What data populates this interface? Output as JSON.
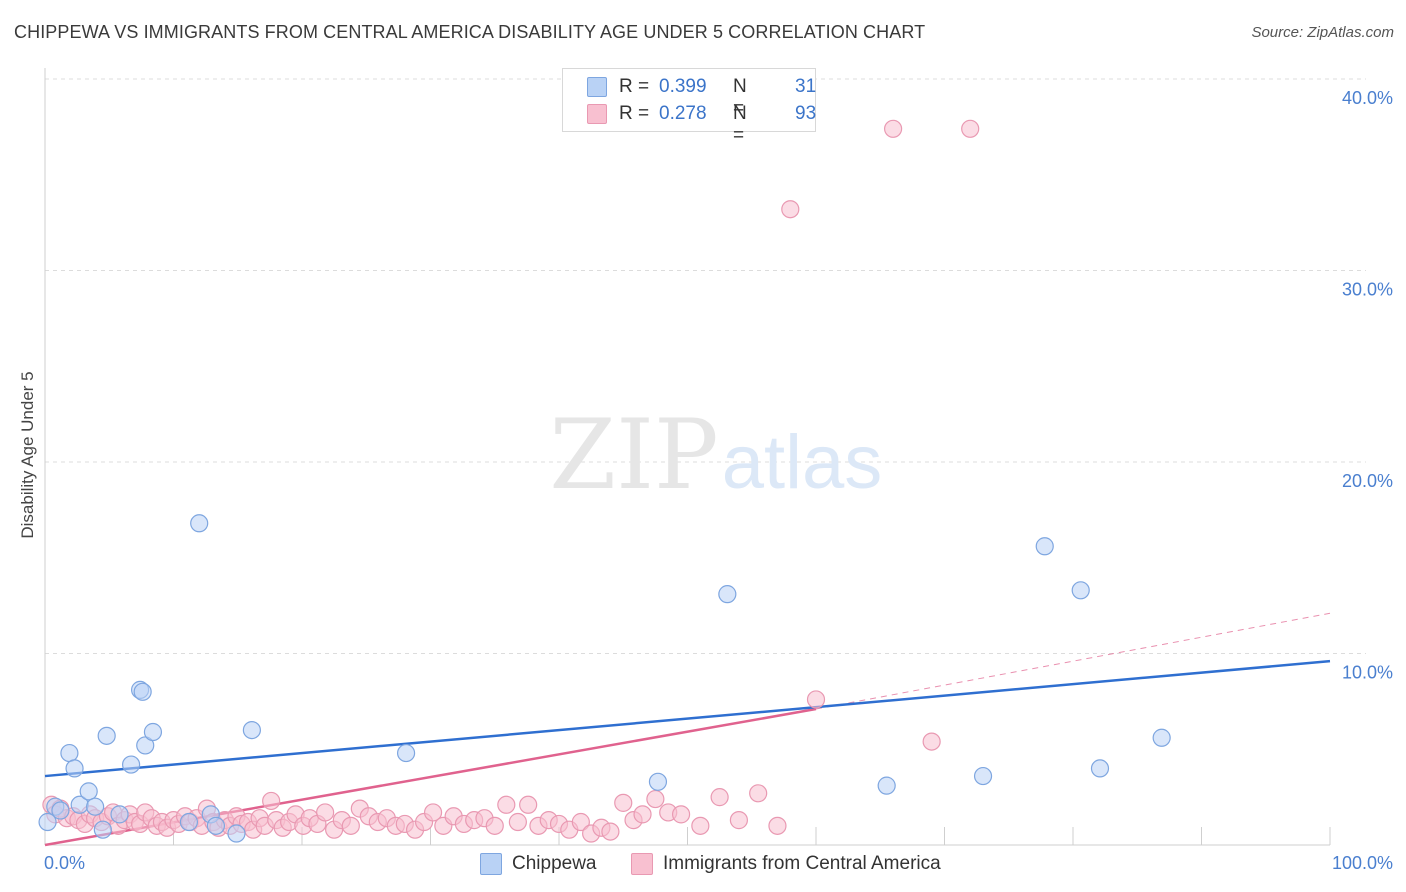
{
  "header": {
    "title": "CHIPPEWA VS IMMIGRANTS FROM CENTRAL AMERICA DISABILITY AGE UNDER 5 CORRELATION CHART",
    "source": "Source: ZipAtlas.com"
  },
  "watermark": {
    "zip": "ZIP",
    "atlas": "atlas"
  },
  "stats": {
    "r_label": "R =",
    "n_label": "N =",
    "rows": [
      {
        "r": "0.399",
        "n": "31"
      },
      {
        "r": "0.278",
        "n": "93"
      }
    ]
  },
  "colors": {
    "chippewa_fill": "#b9d2f5",
    "chippewa_stroke": "#7ea6e0",
    "chippewa_line": "#2f6fd0",
    "central_fill": "#f8c0d0",
    "central_stroke": "#e999b2",
    "central_line": "#e0628e",
    "tick_text": "#4a7fcf",
    "grid": "#dcdcdc"
  },
  "chart_data": {
    "type": "scatter",
    "title": "CHIPPEWA VS IMMIGRANTS FROM CENTRAL AMERICA DISABILITY AGE UNDER 5 CORRELATION CHART",
    "xlabel": "",
    "ylabel": "Disability Age Under 5",
    "xlim": [
      0,
      100
    ],
    "ylim": [
      0,
      40
    ],
    "x_tick_labels": [
      "0.0%",
      "100.0%"
    ],
    "y_ticks": [
      10,
      20,
      30,
      40
    ],
    "y_tick_labels": [
      "10.0%",
      "20.0%",
      "30.0%",
      "40.0%"
    ],
    "grid": true,
    "legend_position": "bottom-center",
    "series": [
      {
        "name": "Chippewa",
        "r": 0.399,
        "n": 31,
        "points": [
          [
            0.2,
            1.2
          ],
          [
            0.8,
            2.0
          ],
          [
            1.2,
            1.8
          ],
          [
            1.9,
            4.8
          ],
          [
            2.3,
            4.0
          ],
          [
            2.7,
            2.1
          ],
          [
            3.4,
            2.8
          ],
          [
            3.9,
            2.0
          ],
          [
            4.5,
            0.8
          ],
          [
            4.8,
            5.7
          ],
          [
            5.8,
            1.6
          ],
          [
            6.7,
            4.2
          ],
          [
            7.4,
            8.1
          ],
          [
            7.6,
            8.0
          ],
          [
            7.8,
            5.2
          ],
          [
            8.4,
            5.9
          ],
          [
            11.2,
            1.2
          ],
          [
            12.0,
            16.8
          ],
          [
            12.9,
            1.6
          ],
          [
            13.3,
            1.0
          ],
          [
            14.9,
            0.6
          ],
          [
            16.1,
            6.0
          ],
          [
            28.1,
            4.8
          ],
          [
            47.7,
            3.3
          ],
          [
            53.1,
            13.1
          ],
          [
            65.5,
            3.1
          ],
          [
            73.0,
            3.6
          ],
          [
            77.8,
            15.6
          ],
          [
            80.6,
            13.3
          ],
          [
            82.1,
            4.0
          ],
          [
            86.9,
            5.6
          ]
        ],
        "trend": {
          "x": [
            0,
            100
          ],
          "y": [
            3.6,
            9.6
          ]
        }
      },
      {
        "name": "Immigrants from Central America",
        "r": 0.278,
        "n": 93,
        "points": [
          [
            0.5,
            2.1
          ],
          [
            0.8,
            1.6
          ],
          [
            1.2,
            1.9
          ],
          [
            1.7,
            1.4
          ],
          [
            2.2,
            1.5
          ],
          [
            2.6,
            1.3
          ],
          [
            3.1,
            1.1
          ],
          [
            3.5,
            1.6
          ],
          [
            3.9,
            1.4
          ],
          [
            4.4,
            1.2
          ],
          [
            4.9,
            1.5
          ],
          [
            5.3,
            1.7
          ],
          [
            5.7,
            1.0
          ],
          [
            6.2,
            1.3
          ],
          [
            6.6,
            1.6
          ],
          [
            7.0,
            1.2
          ],
          [
            7.4,
            1.1
          ],
          [
            7.8,
            1.7
          ],
          [
            8.3,
            1.4
          ],
          [
            8.7,
            1.0
          ],
          [
            9.1,
            1.2
          ],
          [
            9.5,
            0.9
          ],
          [
            10.0,
            1.3
          ],
          [
            10.4,
            1.1
          ],
          [
            10.9,
            1.5
          ],
          [
            11.3,
            1.2
          ],
          [
            11.8,
            1.4
          ],
          [
            12.2,
            1.0
          ],
          [
            12.6,
            1.9
          ],
          [
            13.1,
            1.2
          ],
          [
            13.5,
            0.9
          ],
          [
            14.0,
            1.3
          ],
          [
            14.4,
            1.0
          ],
          [
            14.9,
            1.5
          ],
          [
            15.3,
            1.1
          ],
          [
            15.8,
            1.2
          ],
          [
            16.2,
            0.8
          ],
          [
            16.7,
            1.4
          ],
          [
            17.1,
            1.0
          ],
          [
            17.6,
            2.3
          ],
          [
            18.0,
            1.3
          ],
          [
            18.5,
            0.9
          ],
          [
            19.0,
            1.2
          ],
          [
            19.5,
            1.6
          ],
          [
            20.1,
            1.0
          ],
          [
            20.6,
            1.4
          ],
          [
            21.2,
            1.1
          ],
          [
            21.8,
            1.7
          ],
          [
            22.5,
            0.8
          ],
          [
            23.1,
            1.3
          ],
          [
            23.8,
            1.0
          ],
          [
            24.5,
            1.9
          ],
          [
            25.2,
            1.5
          ],
          [
            25.9,
            1.2
          ],
          [
            26.6,
            1.4
          ],
          [
            27.3,
            1.0
          ],
          [
            28.0,
            1.1
          ],
          [
            28.8,
            0.8
          ],
          [
            29.5,
            1.2
          ],
          [
            30.2,
            1.7
          ],
          [
            31.0,
            1.0
          ],
          [
            31.8,
            1.5
          ],
          [
            32.6,
            1.1
          ],
          [
            33.4,
            1.3
          ],
          [
            34.2,
            1.4
          ],
          [
            35.0,
            1.0
          ],
          [
            35.9,
            2.1
          ],
          [
            36.8,
            1.2
          ],
          [
            37.6,
            2.1
          ],
          [
            38.4,
            1.0
          ],
          [
            39.2,
            1.3
          ],
          [
            40.0,
            1.1
          ],
          [
            40.8,
            0.8
          ],
          [
            41.7,
            1.2
          ],
          [
            42.5,
            0.6
          ],
          [
            43.3,
            0.9
          ],
          [
            44.0,
            0.7
          ],
          [
            45.0,
            2.2
          ],
          [
            45.8,
            1.3
          ],
          [
            46.5,
            1.6
          ],
          [
            47.5,
            2.4
          ],
          [
            48.5,
            1.7
          ],
          [
            49.5,
            1.6
          ],
          [
            51.0,
            1.0
          ],
          [
            52.5,
            2.5
          ],
          [
            54.0,
            1.3
          ],
          [
            55.5,
            2.7
          ],
          [
            57.0,
            1.0
          ],
          [
            60.0,
            7.6
          ],
          [
            69.0,
            5.4
          ],
          [
            66.0,
            37.4
          ],
          [
            58.0,
            33.2
          ],
          [
            72.0,
            37.4
          ]
        ],
        "trend": {
          "x": [
            0,
            60
          ],
          "y": [
            0.0,
            7.1
          ]
        },
        "trend_extension": {
          "x": [
            60,
            100
          ],
          "y": [
            7.1,
            12.1
          ]
        }
      }
    ]
  }
}
